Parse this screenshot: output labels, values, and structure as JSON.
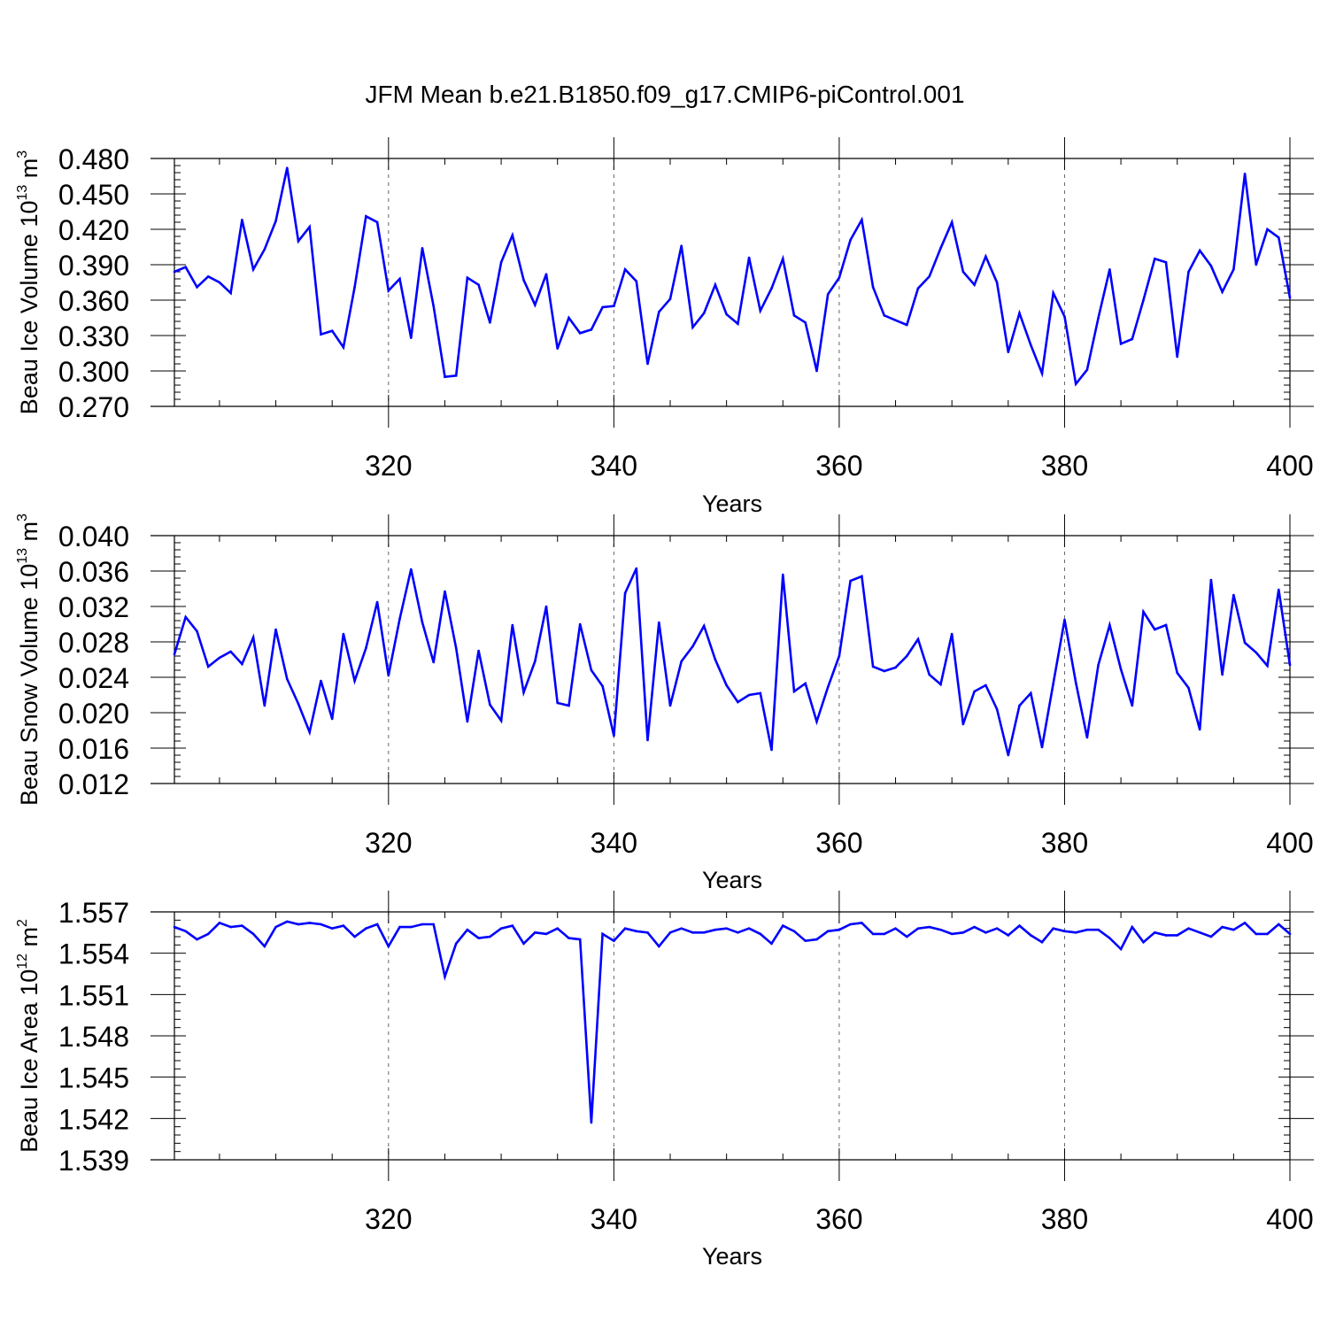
{
  "figure_title": "JFM Mean b.e21.B1850.f09_g17.CMIP6-piControl.001",
  "colors": {
    "line": "#0000ff",
    "axis": "#000000",
    "grid": "#666666"
  },
  "chart_data": [
    {
      "type": "line",
      "ylabel": "Beau Ice Volume 10",
      "ylabel_exp": "13",
      "ylabel_unit": " m",
      "ylabel_unit_exp": "3",
      "xlabel": "Years",
      "xlim": [
        301,
        400
      ],
      "ylim": [
        0.27,
        0.48
      ],
      "xticks": [
        320,
        340,
        360,
        380,
        400
      ],
      "yticks": [
        "0.270",
        "0.300",
        "0.330",
        "0.360",
        "0.390",
        "0.420",
        "0.450",
        "0.480"
      ],
      "x_grid": true,
      "series": [
        {
          "x": [
            301,
            302,
            303,
            304,
            305,
            306,
            307,
            308,
            309,
            310,
            311,
            312,
            313,
            314,
            315,
            316,
            317,
            318,
            319,
            320,
            321,
            322,
            323,
            324,
            325,
            326,
            327,
            328,
            329,
            330,
            331,
            332,
            333,
            334,
            335,
            336,
            337,
            338,
            339,
            340,
            341,
            342,
            343,
            344,
            345,
            346,
            347,
            348,
            349,
            350,
            351,
            352,
            353,
            354,
            355,
            356,
            357,
            358,
            359,
            360,
            361,
            362,
            363,
            364,
            365,
            366,
            367,
            368,
            369,
            370,
            371,
            372,
            373,
            374,
            375,
            376,
            377,
            378,
            379,
            380,
            381,
            382,
            383,
            384,
            385,
            386,
            387,
            388,
            389,
            390,
            391,
            392,
            393,
            394,
            395,
            396,
            397,
            398,
            399,
            400
          ],
          "values": [
            0.384,
            0.388,
            0.371,
            0.38,
            0.375,
            0.366,
            0.428,
            0.386,
            0.403,
            0.427,
            0.472,
            0.41,
            0.422,
            0.331,
            0.334,
            0.32,
            0.371,
            0.431,
            0.426,
            0.368,
            0.378,
            0.328,
            0.404,
            0.355,
            0.295,
            0.296,
            0.379,
            0.373,
            0.341,
            0.392,
            0.415,
            0.377,
            0.356,
            0.382,
            0.319,
            0.345,
            0.332,
            0.335,
            0.354,
            0.355,
            0.386,
            0.376,
            0.306,
            0.35,
            0.361,
            0.406,
            0.337,
            0.349,
            0.373,
            0.348,
            0.34,
            0.396,
            0.351,
            0.37,
            0.395,
            0.347,
            0.341,
            0.3,
            0.365,
            0.379,
            0.411,
            0.428,
            0.371,
            0.347,
            0.343,
            0.339,
            0.37,
            0.38,
            0.404,
            0.426,
            0.384,
            0.373,
            0.397,
            0.375,
            0.316,
            0.349,
            0.322,
            0.298,
            0.366,
            0.346,
            0.289,
            0.301,
            0.345,
            0.386,
            0.323,
            0.327,
            0.36,
            0.395,
            0.392,
            0.312,
            0.384,
            0.402,
            0.389,
            0.367,
            0.386,
            0.467,
            0.39,
            0.42,
            0.413,
            0.362
          ]
        }
      ]
    },
    {
      "type": "line",
      "ylabel": "Beau Snow Volume 10",
      "ylabel_exp": "13",
      "ylabel_unit": " m",
      "ylabel_unit_exp": "3",
      "xlabel": "Years",
      "xlim": [
        301,
        400
      ],
      "ylim": [
        0.012,
        0.04
      ],
      "xticks": [
        320,
        340,
        360,
        380,
        400
      ],
      "yticks": [
        "0.012",
        "0.016",
        "0.020",
        "0.024",
        "0.028",
        "0.032",
        "0.036",
        "0.040"
      ],
      "x_grid": true,
      "series": [
        {
          "x": [
            301,
            302,
            303,
            304,
            305,
            306,
            307,
            308,
            309,
            310,
            311,
            312,
            313,
            314,
            315,
            316,
            317,
            318,
            319,
            320,
            321,
            322,
            323,
            324,
            325,
            326,
            327,
            328,
            329,
            330,
            331,
            332,
            333,
            334,
            335,
            336,
            337,
            338,
            339,
            340,
            341,
            342,
            343,
            344,
            345,
            346,
            347,
            348,
            349,
            350,
            351,
            352,
            353,
            354,
            355,
            356,
            357,
            358,
            359,
            360,
            361,
            362,
            363,
            364,
            365,
            366,
            367,
            368,
            369,
            370,
            371,
            372,
            373,
            374,
            375,
            376,
            377,
            378,
            379,
            380,
            381,
            382,
            383,
            384,
            385,
            386,
            387,
            388,
            389,
            390,
            391,
            392,
            393,
            394,
            395,
            396,
            397,
            398,
            399,
            400
          ],
          "values": [
            0.0266,
            0.0308,
            0.0292,
            0.0252,
            0.0262,
            0.0269,
            0.0255,
            0.0285,
            0.0208,
            0.0294,
            0.0238,
            0.021,
            0.0178,
            0.0236,
            0.0193,
            0.0289,
            0.0236,
            0.0273,
            0.0325,
            0.0242,
            0.0306,
            0.0362,
            0.0302,
            0.0257,
            0.0337,
            0.0273,
            0.019,
            0.027,
            0.0209,
            0.0191,
            0.0299,
            0.0223,
            0.0258,
            0.032,
            0.0211,
            0.0208,
            0.03,
            0.0248,
            0.023,
            0.0174,
            0.0335,
            0.0363,
            0.0169,
            0.0302,
            0.0208,
            0.0258,
            0.0275,
            0.0298,
            0.026,
            0.0231,
            0.0212,
            0.022,
            0.0222,
            0.0158,
            0.0356,
            0.0224,
            0.0233,
            0.019,
            0.0229,
            0.0264,
            0.0349,
            0.0354,
            0.0252,
            0.0247,
            0.0251,
            0.0264,
            0.0283,
            0.0243,
            0.0232,
            0.0289,
            0.0187,
            0.0224,
            0.0231,
            0.0204,
            0.0152,
            0.0208,
            0.0222,
            0.0161,
            0.0233,
            0.0305,
            0.0234,
            0.0172,
            0.0254,
            0.0299,
            0.0249,
            0.0208,
            0.0314,
            0.0294,
            0.0299,
            0.0245,
            0.0228,
            0.0181,
            0.035,
            0.0243,
            0.0333,
            0.0279,
            0.0268,
            0.0253,
            0.0339,
            0.0254
          ]
        }
      ]
    },
    {
      "type": "line",
      "ylabel": "Beau Ice Area 10",
      "ylabel_exp": "12",
      "ylabel_unit": " m",
      "ylabel_unit_exp": "2",
      "xlabel": "Years",
      "xlim": [
        301,
        400
      ],
      "ylim": [
        1.539,
        1.557
      ],
      "xticks": [
        320,
        340,
        360,
        380,
        400
      ],
      "yticks": [
        "1.539",
        "1.542",
        "1.545",
        "1.548",
        "1.551",
        "1.554",
        "1.557"
      ],
      "x_grid": true,
      "series": [
        {
          "x": [
            301,
            302,
            303,
            304,
            305,
            306,
            307,
            308,
            309,
            310,
            311,
            312,
            313,
            314,
            315,
            316,
            317,
            318,
            319,
            320,
            321,
            322,
            323,
            324,
            325,
            326,
            327,
            328,
            329,
            330,
            331,
            332,
            333,
            334,
            335,
            336,
            337,
            338,
            339,
            340,
            341,
            342,
            343,
            344,
            345,
            346,
            347,
            348,
            349,
            350,
            351,
            352,
            353,
            354,
            355,
            356,
            357,
            358,
            359,
            360,
            361,
            362,
            363,
            364,
            365,
            366,
            367,
            368,
            369,
            370,
            371,
            372,
            373,
            374,
            375,
            376,
            377,
            378,
            379,
            380,
            381,
            382,
            383,
            384,
            385,
            386,
            387,
            388,
            389,
            390,
            391,
            392,
            393,
            394,
            395,
            396,
            397,
            398,
            399,
            400
          ],
          "values": [
            1.5559,
            1.5556,
            1.555,
            1.5554,
            1.5562,
            1.5559,
            1.556,
            1.5554,
            1.5545,
            1.5559,
            1.5563,
            1.5561,
            1.5562,
            1.5561,
            1.5558,
            1.556,
            1.5552,
            1.5558,
            1.5561,
            1.5545,
            1.5559,
            1.5559,
            1.5561,
            1.5561,
            1.5523,
            1.5547,
            1.5557,
            1.5551,
            1.5552,
            1.5558,
            1.556,
            1.5547,
            1.5555,
            1.5554,
            1.5558,
            1.5551,
            1.555,
            1.5417,
            1.5554,
            1.5549,
            1.5558,
            1.5556,
            1.5555,
            1.5545,
            1.5555,
            1.5558,
            1.5555,
            1.5555,
            1.5557,
            1.5558,
            1.5555,
            1.5558,
            1.5554,
            1.5547,
            1.556,
            1.5556,
            1.5549,
            1.555,
            1.5556,
            1.5557,
            1.5561,
            1.5562,
            1.5554,
            1.5554,
            1.5558,
            1.5552,
            1.5558,
            1.5559,
            1.5557,
            1.5554,
            1.5555,
            1.5559,
            1.5555,
            1.5558,
            1.5553,
            1.556,
            1.5553,
            1.5548,
            1.5558,
            1.5556,
            1.5555,
            1.5557,
            1.5557,
            1.5551,
            1.5543,
            1.5559,
            1.5548,
            1.5555,
            1.5553,
            1.5553,
            1.5558,
            1.5555,
            1.5552,
            1.5559,
            1.5557,
            1.5562,
            1.5554,
            1.5554,
            1.5561,
            1.5554
          ]
        }
      ]
    }
  ]
}
